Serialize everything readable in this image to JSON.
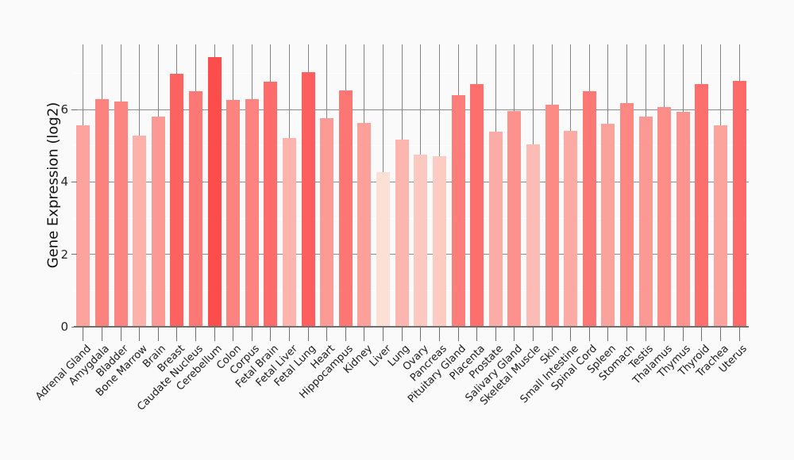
{
  "chart_data": {
    "type": "bar",
    "title": "",
    "xlabel": "",
    "ylabel": "Gene Expression (log2)",
    "categories": [
      "Adrenal Gland",
      "Amygdala",
      "Bladder",
      "Bone Marrow",
      "Brain",
      "Breast",
      "Caudate Nucleus",
      "Cerebellum",
      "Colon",
      "Corpus",
      "Fetal Brain",
      "Fetal Liver",
      "Fetal Lung",
      "Heart",
      "Hippocampus",
      "Kidney",
      "Liver",
      "Lung",
      "Ovary",
      "Pancreas",
      "Pituitary Gland",
      "Placenta",
      "Prostate",
      "Salivary Gland",
      "Skeletal Muscle",
      "Skin",
      "Small Intestine",
      "Spinal Cord",
      "Spleen",
      "Stomach",
      "Testis",
      "Thalamus",
      "Thymus",
      "Thyroid",
      "Trachea",
      "Uterus"
    ],
    "values": [
      5.57,
      6.29,
      6.22,
      5.27,
      5.8,
      6.99,
      6.5,
      7.44,
      6.27,
      6.28,
      6.77,
      5.22,
      7.04,
      5.77,
      6.53,
      5.64,
      4.28,
      5.17,
      4.76,
      4.71,
      6.4,
      6.7,
      5.38,
      5.96,
      5.05,
      6.13,
      5.41,
      6.5,
      5.6,
      6.18,
      5.8,
      6.06,
      5.93,
      6.7,
      5.57,
      6.79
    ],
    "ylim": [
      0,
      7.8
    ],
    "yticks": [
      0,
      2,
      4,
      6
    ],
    "minor_yticks": [
      1,
      3,
      5,
      7
    ],
    "x_tick_rotation_deg": 45,
    "legend": "none",
    "grid": {
      "horizontal_major": true,
      "horizontal_minor": true,
      "vertical_per_category": true
    },
    "color_scale": {
      "min_value": 4.28,
      "max_value": 7.44,
      "min_color": "#fcdfd5",
      "max_color": "#fc4d4d"
    }
  },
  "colors": {
    "background": "#fafafa",
    "axis_line": "#6e6e6e",
    "major_grid": "#8c8c8c",
    "minor_grid": "#ffffff",
    "vertical_grid": "#848484",
    "tick_mark": "#6e6e6e",
    "ytick_label": "#262626",
    "category_label": "#1a1a1a",
    "axis_title": "#111111"
  }
}
